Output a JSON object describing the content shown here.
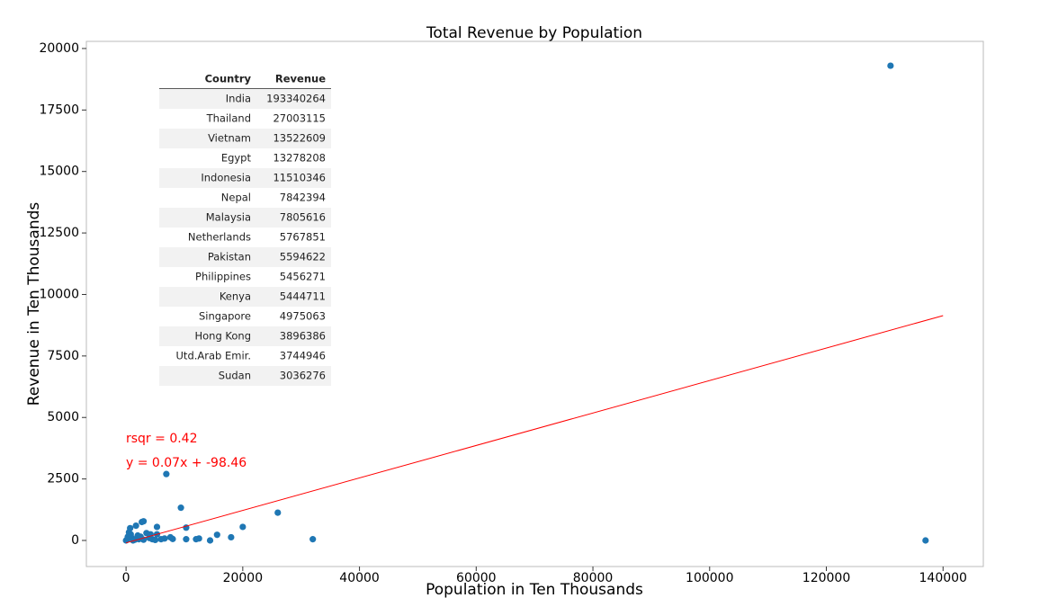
{
  "chart_data": {
    "type": "scatter",
    "title": "Total Revenue by Population",
    "x_label": "Population in Ten Thousands",
    "y_label": "Revenue in Ten Thousands",
    "xlim": [
      -6800,
      146900
    ],
    "ylim": [
      -1060,
      20290
    ],
    "xticks": [
      0,
      20000,
      40000,
      60000,
      80000,
      100000,
      120000,
      140000
    ],
    "yticks": [
      0,
      2500,
      5000,
      7500,
      10000,
      12500,
      15000,
      17500,
      20000
    ],
    "series": [
      {
        "color": "#1f77b4",
        "x": [
          131000,
          137000,
          6900,
          9400,
          26000,
          32000,
          20000,
          10300,
          18000,
          15600,
          14400,
          12500,
          12000,
          10300,
          8000,
          7600,
          6600,
          5300,
          5300,
          3000,
          2700,
          1700,
          700,
          500,
          300,
          0,
          200,
          1000,
          1500,
          2000,
          2500,
          3500,
          4000,
          4500,
          3000,
          5000,
          6000,
          800,
          1200,
          2200,
          4200
        ],
        "y": [
          19300,
          0,
          2700,
          1330,
          1130,
          50,
          550,
          520,
          130,
          230,
          0,
          80,
          50,
          50,
          60,
          130,
          80,
          550,
          250,
          780,
          750,
          600,
          500,
          330,
          150,
          0,
          50,
          100,
          30,
          200,
          150,
          300,
          100,
          50,
          30,
          20,
          50,
          250,
          0,
          50,
          250
        ]
      }
    ],
    "fit": {
      "color": "#ff0000",
      "x": [
        0,
        140000
      ],
      "y": [
        -98.46,
        9141
      ]
    },
    "annotations": [
      "rsqr = 0.42",
      "y = 0.07x + -98.46"
    ],
    "annotation_color": "#ff0000",
    "table": {
      "columns": [
        "Country",
        "Revenue"
      ],
      "rows": [
        [
          "India",
          "193340264"
        ],
        [
          "Thailand",
          "27003115"
        ],
        [
          "Vietnam",
          "13522609"
        ],
        [
          "Egypt",
          "13278208"
        ],
        [
          "Indonesia",
          "11510346"
        ],
        [
          "Nepal",
          "7842394"
        ],
        [
          "Malaysia",
          "7805616"
        ],
        [
          "Netherlands",
          "5767851"
        ],
        [
          "Pakistan",
          "5594622"
        ],
        [
          "Philippines",
          "5456271"
        ],
        [
          "Kenya",
          "5444711"
        ],
        [
          "Singapore",
          "4975063"
        ],
        [
          "Hong Kong",
          "3896386"
        ],
        [
          "Utd.Arab Emir.",
          "3744946"
        ],
        [
          "Sudan",
          "3036276"
        ]
      ]
    }
  }
}
